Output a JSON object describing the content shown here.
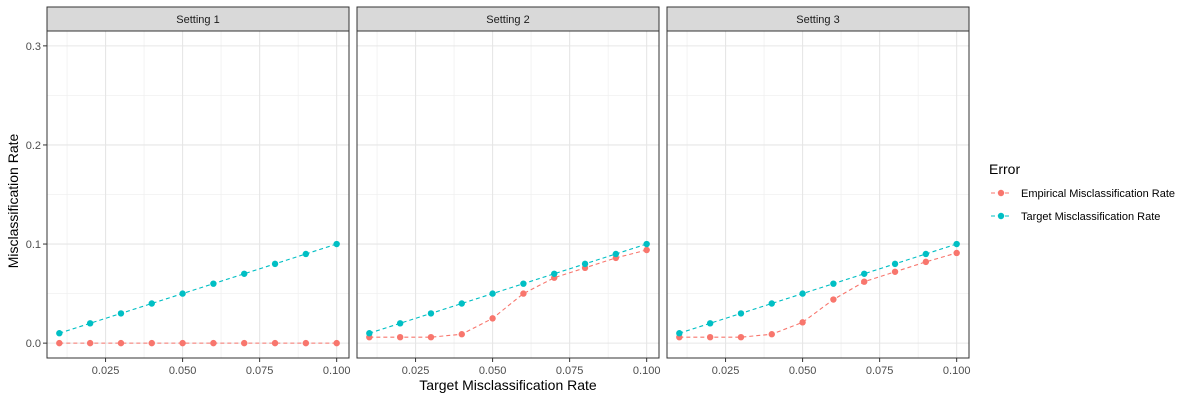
{
  "chart_data": {
    "type": "line",
    "xlabel": "Target Misclassification Rate",
    "ylabel": "Misclassification Rate",
    "xlim": [
      0.006,
      0.104
    ],
    "ylim": [
      -0.015,
      0.315
    ],
    "x_ticks": [
      0.025,
      0.05,
      0.075,
      0.1
    ],
    "x_tick_labels": [
      "0.025",
      "0.050",
      "0.075",
      "0.100"
    ],
    "y_ticks": [
      0.0,
      0.1,
      0.2,
      0.3
    ],
    "y_tick_labels": [
      "0.0",
      "0.1",
      "0.2",
      "0.3"
    ],
    "grid": true,
    "legend": {
      "title": "Error",
      "position": "right",
      "entries": [
        "Empirical Misclassification Rate",
        "Target Misclassification Rate"
      ]
    },
    "colors": {
      "Empirical Misclassification Rate": "#F8766D",
      "Target Misclassification Rate": "#00BFC4"
    },
    "panels": [
      {
        "title": "Setting 1",
        "series": [
          {
            "name": "Empirical Misclassification Rate",
            "x": [
              0.01,
              0.02,
              0.03,
              0.04,
              0.05,
              0.06,
              0.07,
              0.08,
              0.09,
              0.1
            ],
            "y": [
              0.0,
              0.0,
              0.0,
              0.0,
              0.0,
              0.0,
              0.0,
              0.0,
              0.0,
              0.0
            ]
          },
          {
            "name": "Target Misclassification Rate",
            "x": [
              0.01,
              0.02,
              0.03,
              0.04,
              0.05,
              0.06,
              0.07,
              0.08,
              0.09,
              0.1
            ],
            "y": [
              0.01,
              0.02,
              0.03,
              0.04,
              0.05,
              0.06,
              0.07,
              0.08,
              0.09,
              0.1
            ]
          }
        ]
      },
      {
        "title": "Setting 2",
        "series": [
          {
            "name": "Empirical Misclassification Rate",
            "x": [
              0.01,
              0.02,
              0.03,
              0.04,
              0.05,
              0.06,
              0.07,
              0.08,
              0.09,
              0.1
            ],
            "y": [
              0.006,
              0.006,
              0.006,
              0.009,
              0.025,
              0.05,
              0.066,
              0.076,
              0.086,
              0.094
            ]
          },
          {
            "name": "Target Misclassification Rate",
            "x": [
              0.01,
              0.02,
              0.03,
              0.04,
              0.05,
              0.06,
              0.07,
              0.08,
              0.09,
              0.1
            ],
            "y": [
              0.01,
              0.02,
              0.03,
              0.04,
              0.05,
              0.06,
              0.07,
              0.08,
              0.09,
              0.1
            ]
          }
        ]
      },
      {
        "title": "Setting 3",
        "series": [
          {
            "name": "Empirical Misclassification Rate",
            "x": [
              0.01,
              0.02,
              0.03,
              0.04,
              0.05,
              0.06,
              0.07,
              0.08,
              0.09,
              0.1
            ],
            "y": [
              0.006,
              0.006,
              0.006,
              0.009,
              0.021,
              0.044,
              0.062,
              0.072,
              0.082,
              0.091
            ]
          },
          {
            "name": "Target Misclassification Rate",
            "x": [
              0.01,
              0.02,
              0.03,
              0.04,
              0.05,
              0.06,
              0.07,
              0.08,
              0.09,
              0.1
            ],
            "y": [
              0.01,
              0.02,
              0.03,
              0.04,
              0.05,
              0.06,
              0.07,
              0.08,
              0.09,
              0.1
            ]
          }
        ]
      }
    ]
  }
}
